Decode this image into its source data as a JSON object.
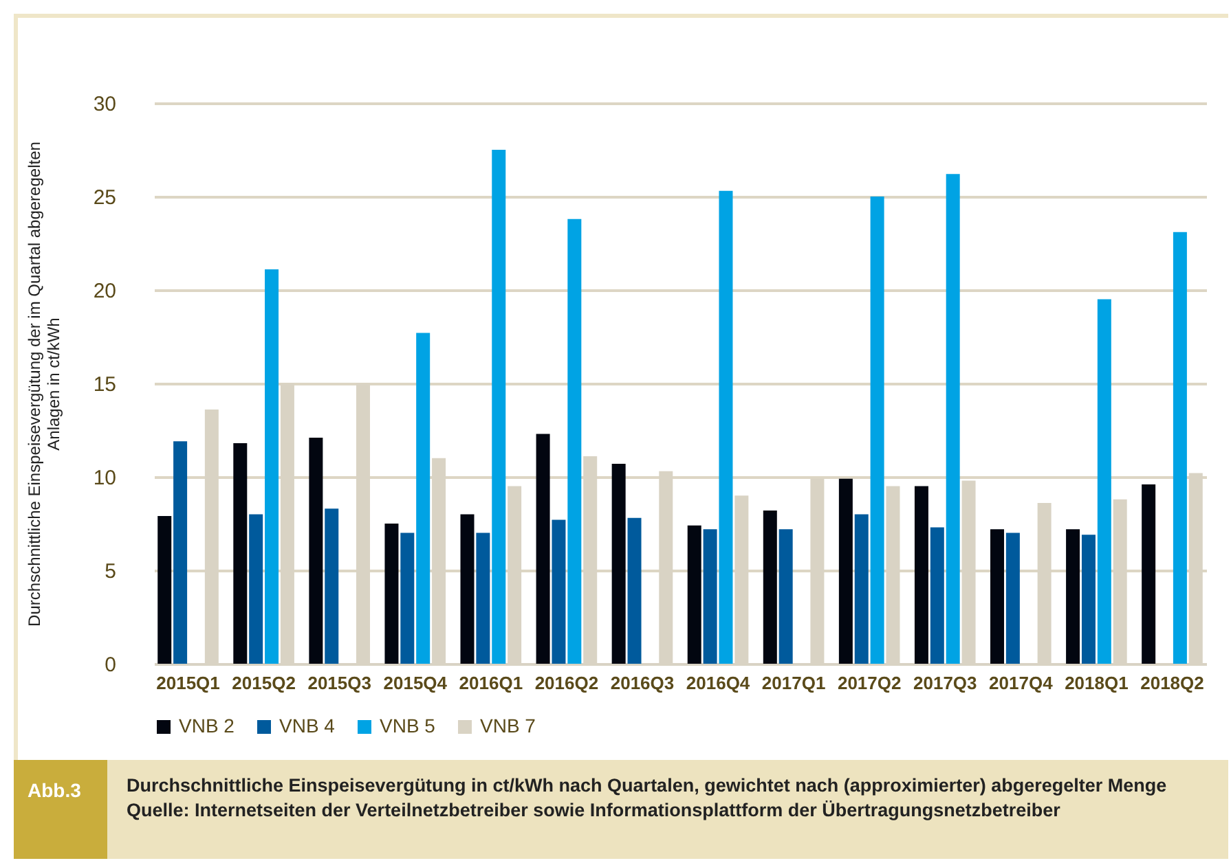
{
  "chart_data": {
    "type": "bar",
    "ylabel": "Durchschnittliche Einspeisevergütung der im Quartal abgeregelten Anlagen in ct/kWh",
    "categories": [
      "2015Q1",
      "2015Q2",
      "2015Q3",
      "2015Q4",
      "2016Q1",
      "2016Q2",
      "2016Q3",
      "2016Q4",
      "2017Q1",
      "2017Q2",
      "2017Q3",
      "2017Q4",
      "2018Q1",
      "2018Q2"
    ],
    "series": [
      {
        "name": "VNB 2",
        "color": "#020610",
        "values": [
          7.9,
          11.8,
          12.1,
          7.5,
          8.0,
          12.3,
          10.7,
          7.4,
          8.2,
          9.9,
          9.5,
          7.2,
          7.2,
          9.6
        ]
      },
      {
        "name": "VNB 4",
        "color": "#005a9c",
        "values": [
          11.9,
          8.0,
          8.3,
          7.0,
          7.0,
          7.7,
          7.8,
          7.2,
          7.2,
          8.0,
          7.3,
          7.0,
          6.9,
          null
        ]
      },
      {
        "name": "VNB 5",
        "color": "#00a3e4",
        "values": [
          null,
          21.1,
          null,
          17.7,
          27.5,
          23.8,
          null,
          25.3,
          null,
          25.0,
          26.2,
          null,
          19.5,
          23.1
        ]
      },
      {
        "name": "VNB 7",
        "color": "#d9d3c4",
        "values": [
          13.6,
          15.0,
          15.0,
          11.0,
          9.5,
          11.1,
          10.3,
          9.0,
          9.9,
          9.5,
          9.8,
          8.6,
          8.8,
          10.2
        ]
      }
    ],
    "ylim": [
      0,
      30
    ],
    "yticks": [
      0,
      5,
      10,
      15,
      20,
      25,
      30
    ],
    "grid": "y",
    "legend": "bottom",
    "annotations": [
      "Abb.3",
      "Durchschnittliche Einspeisevergütung in ct/kWh nach Quartalen, gewichtet nach (approximierter) abgeregelter Menge",
      "Quelle: Internetseiten der Verteilnetzbetreiber sowie Informationsplattform der Übertragungsnetzbetreiber"
    ]
  }
}
